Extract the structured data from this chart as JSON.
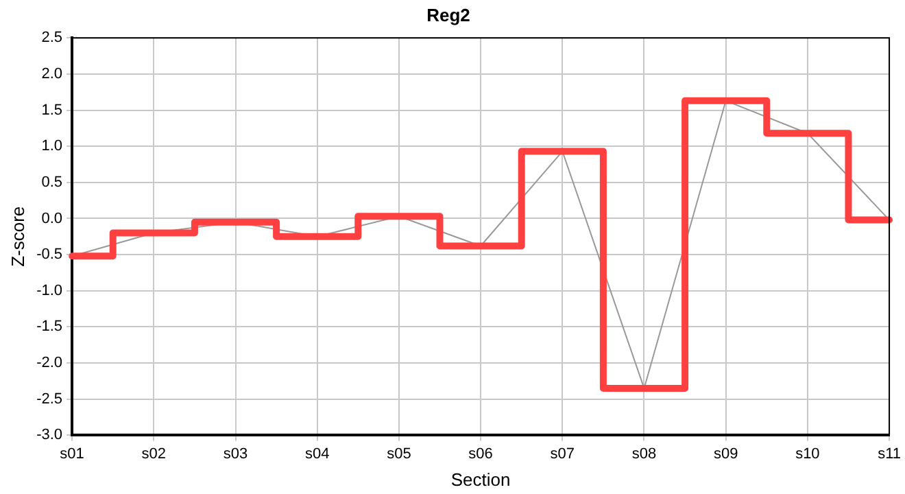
{
  "chart_data": {
    "type": "line",
    "title": "Reg2",
    "xlabel": "Section",
    "ylabel": "Z-score",
    "categories": [
      "s01",
      "s02",
      "s03",
      "s04",
      "s05",
      "s06",
      "s07",
      "s08",
      "s09",
      "s10",
      "s11"
    ],
    "series": [
      {
        "color": "#999999",
        "values": [
          -0.52,
          -0.2,
          -0.05,
          -0.25,
          0.03,
          -0.38,
          0.93,
          -2.35,
          1.63,
          1.18,
          -0.02
        ]
      },
      {
        "type": "step",
        "color": "#ff4040",
        "values": [
          -0.52,
          -0.2,
          -0.05,
          -0.25,
          0.03,
          -0.38,
          0.93,
          -2.35,
          1.63,
          1.18,
          -0.02
        ]
      }
    ],
    "ylim": [
      -3,
      2.5
    ],
    "yticks": [
      {
        "value": -3,
        "label": "-3.0"
      },
      {
        "value": -2.5,
        "label": "-2.5"
      },
      {
        "value": -2,
        "label": "-2.0"
      },
      {
        "value": -1.5,
        "label": "-1.5"
      },
      {
        "value": -1,
        "label": "-1.0"
      },
      {
        "value": -0.5,
        "label": "-0.5"
      },
      {
        "value": 0,
        "label": "0.0"
      },
      {
        "value": 0.5,
        "label": "0.5"
      },
      {
        "value": 1,
        "label": "1.0"
      },
      {
        "value": 1.5,
        "label": "1.5"
      },
      {
        "value": 2,
        "label": "2.0"
      },
      {
        "value": 2.5,
        "label": "2.5"
      }
    ],
    "grid": true,
    "legend": false,
    "marker": "none",
    "line_style": "solid"
  }
}
